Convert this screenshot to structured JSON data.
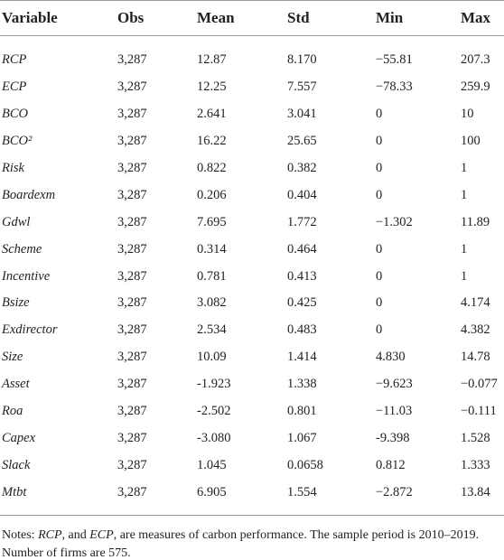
{
  "table": {
    "columns": [
      "Variable",
      "Obs",
      "Mean",
      "Std",
      "Min",
      "Max"
    ],
    "rows": [
      [
        "RCP",
        "3,287",
        "12.87",
        "8.170",
        "−55.81",
        "207.3"
      ],
      [
        "ECP",
        "3,287",
        "12.25",
        "7.557",
        "−78.33",
        "259.9"
      ],
      [
        "BCO",
        "3,287",
        "2.641",
        "3.041",
        "0",
        "10"
      ],
      [
        "BCO²",
        "3,287",
        "16.22",
        "25.65",
        "0",
        "100"
      ],
      [
        "Risk",
        "3,287",
        "0.822",
        "0.382",
        "0",
        "1"
      ],
      [
        "Boardexm",
        "3,287",
        "0.206",
        "0.404",
        "0",
        "1"
      ],
      [
        "Gdwl",
        "3,287",
        "7.695",
        "1.772",
        "−1.302",
        "11.89"
      ],
      [
        "Scheme",
        "3,287",
        "0.314",
        "0.464",
        "0",
        "1"
      ],
      [
        "Incentive",
        "3,287",
        "0.781",
        "0.413",
        "0",
        "1"
      ],
      [
        "Bsize",
        "3,287",
        "3.082",
        "0.425",
        "0",
        "4.174"
      ],
      [
        "Exdirector",
        "3,287",
        "2.534",
        "0.483",
        "0",
        "4.382"
      ],
      [
        "Size",
        "3,287",
        "10.09",
        "1.414",
        "4.830",
        "14.78"
      ],
      [
        "Asset",
        "3,287",
        "-1.923",
        "1.338",
        "−9.623",
        "−0.077"
      ],
      [
        "Roa",
        "3,287",
        "-2.502",
        "0.801",
        "−11.03",
        "−0.111"
      ],
      [
        "Capex",
        "3,287",
        "-3.080",
        "1.067",
        "-9.398",
        "1.528"
      ],
      [
        "Slack",
        "3,287",
        "1.045",
        "0.0658",
        "0.812",
        "1.333"
      ],
      [
        "Mtbt",
        "3,287",
        "6.905",
        "1.554",
        "−2.872",
        "13.84"
      ]
    ]
  },
  "notes": {
    "parts": [
      "Notes: ",
      "RCP",
      ", and ",
      "ECP",
      ", are measures of carbon performance. The sample period is 2010–2019. Number of firms are 575."
    ]
  }
}
